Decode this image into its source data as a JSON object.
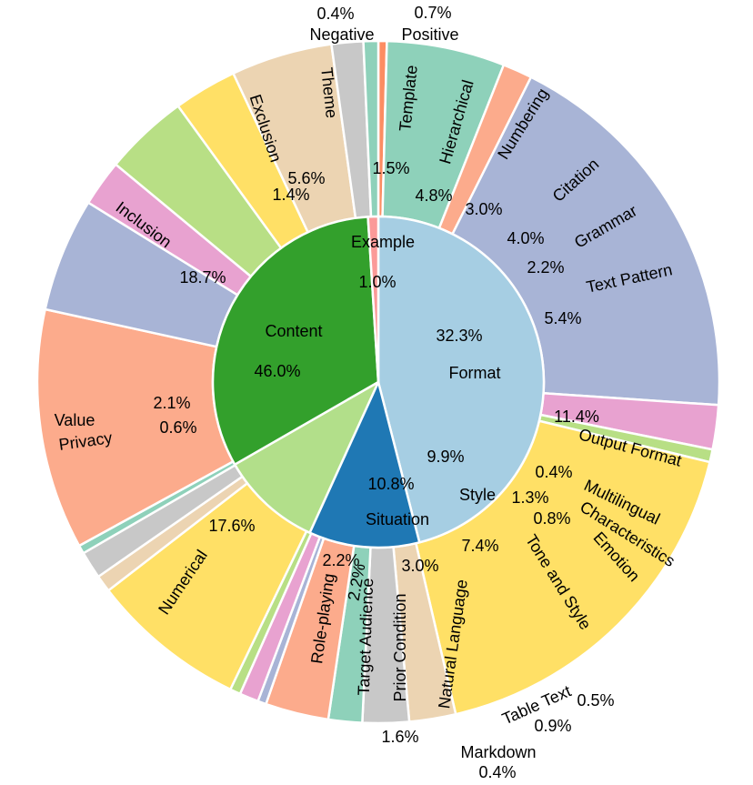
{
  "chart_data": {
    "type": "nested-pie",
    "inner_ring": [
      {
        "label": "Content",
        "pct_label": "46.0%",
        "value": 46.0,
        "color": "#a6cee3"
      },
      {
        "label": "Situation",
        "pct_label": "10.8%",
        "value": 10.8,
        "color": "#1f78b4"
      },
      {
        "label": "Style",
        "pct_label": "9.9%",
        "value": 9.9,
        "color": "#b2df8a"
      },
      {
        "label": "Format",
        "pct_label": "32.3%",
        "value": 32.3,
        "color": "#33a02c"
      },
      {
        "label": "Example",
        "pct_label": "1.0%",
        "value": 1.0,
        "color": "#fb9a99"
      }
    ],
    "outer_ring": [
      {
        "label": "Negative",
        "pct_label": "0.4%",
        "value": 0.4,
        "color": "#fc8d62"
      },
      {
        "label": "Theme",
        "pct_label": "5.6%",
        "value": 5.6,
        "color": "#8ed1ba"
      },
      {
        "label": "Exclusion",
        "pct_label": "1.4%",
        "value": 1.4,
        "color": "#fcab8c"
      },
      {
        "label": "Inclusion",
        "pct_label": "18.7%",
        "value": 18.7,
        "color": "#a8b4d6"
      },
      {
        "label": "Value",
        "pct_label": "2.1%",
        "value": 2.1,
        "color": "#e8a2d0"
      },
      {
        "label": "Privacy",
        "pct_label": "0.6%",
        "value": 0.6,
        "color": "#b8df85"
      },
      {
        "label": "Numerical",
        "pct_label": "17.6%",
        "value": 17.6,
        "color": "#ffe066"
      },
      {
        "label": "Role-playing",
        "pct_label": "2.2%",
        "value": 2.2,
        "color": "#ecd4b2"
      },
      {
        "label": "Target Audience",
        "pct_label": "2.2%",
        "value": 2.2,
        "color": "#c8c8c8"
      },
      {
        "label": "Prior Condition",
        "pct_label": "1.6%",
        "value": 1.6,
        "color": "#8ed1ba"
      },
      {
        "label": "Natural Language",
        "pct_label": "3.0%",
        "value": 3.0,
        "color": "#fcab8c"
      },
      {
        "label": "Markdown",
        "pct_label": "0.4%",
        "value": 0.4,
        "color": "#a8b4d6"
      },
      {
        "label": "Table Text",
        "pct_label": "0.9%",
        "value": 0.9,
        "color": "#e8a2d0"
      },
      {
        "label": "",
        "pct_label": "0.5%",
        "value": 0.5,
        "color": "#b8df85"
      },
      {
        "label": "Tone and Style",
        "pct_label": "7.4%",
        "value": 7.4,
        "color": "#ffe066"
      },
      {
        "label": "Emotion",
        "pct_label": "0.8%",
        "value": 0.8,
        "color": "#ecd4b2"
      },
      {
        "label": "Characteristics",
        "pct_label": "1.3%",
        "value": 1.3,
        "color": "#c8c8c8"
      },
      {
        "label": "Multilingual",
        "pct_label": "0.4%",
        "value": 0.4,
        "color": "#8ed1ba"
      },
      {
        "label": "Output Format",
        "pct_label": "11.4%",
        "value": 11.4,
        "color": "#fcab8c"
      },
      {
        "label": "Text Pattern",
        "pct_label": "5.4%",
        "value": 5.4,
        "color": "#a8b4d6"
      },
      {
        "label": "Grammar",
        "pct_label": "2.2%",
        "value": 2.2,
        "color": "#e8a2d0"
      },
      {
        "label": "Citation",
        "pct_label": "4.0%",
        "value": 4.0,
        "color": "#b8df85"
      },
      {
        "label": "Numbering",
        "pct_label": "3.0%",
        "value": 3.0,
        "color": "#ffe066"
      },
      {
        "label": "Hierarchical",
        "pct_label": "4.8%",
        "value": 4.8,
        "color": "#ecd4b2"
      },
      {
        "label": "Template",
        "pct_label": "1.5%",
        "value": 1.5,
        "color": "#c8c8c8"
      },
      {
        "label": "Positive",
        "pct_label": "0.7%",
        "value": 0.7,
        "color": "#8ed1ba"
      }
    ]
  }
}
